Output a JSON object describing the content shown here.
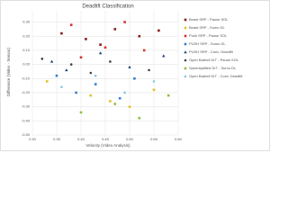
{
  "chart_data": {
    "type": "scatter",
    "title": "Deadlift Classification",
    "x_label": "Velocity (Video Analysis)",
    "y_label": "Difference (Video - Sensor)",
    "xlim": [
      0.3,
      0.6
    ],
    "ylim": [
      -0.5,
      0.38
    ],
    "xticks": [
      {
        "value": 0.3,
        "label": "0.30"
      },
      {
        "value": 0.35,
        "label": "0.35"
      },
      {
        "value": 0.4,
        "label": "0.40"
      },
      {
        "value": 0.45,
        "label": "0.45"
      },
      {
        "value": 0.5,
        "label": "0.50"
      },
      {
        "value": 0.55,
        "label": "0.55"
      },
      {
        "value": 0.6,
        "label": "0.60"
      }
    ],
    "yticks": [
      {
        "value": -0.5,
        "label": "-0.50"
      },
      {
        "value": -0.4,
        "label": "-0.40"
      },
      {
        "value": -0.3,
        "label": "-0.30"
      },
      {
        "value": -0.2,
        "label": "-0.20"
      },
      {
        "value": -0.1,
        "label": "-0.10"
      },
      {
        "value": 0,
        "label": "0.00"
      },
      {
        "value": 0.1,
        "label": "0.10"
      },
      {
        "value": 0.2,
        "label": "0.20"
      },
      {
        "value": 0.3,
        "label": "0.30"
      }
    ],
    "grid": true,
    "series": [
      {
        "name": "Beast SRP - Pause SOL",
        "color": "#8b1a1a",
        "marker": "square",
        "x": [
          0.36,
          0.41,
          0.47,
          0.52,
          0.56,
          0.44
        ],
        "values": [
          0.22,
          0.18,
          0.25,
          0.2,
          0.24,
          0.14
        ]
      },
      {
        "name": "Beast SRP - Sumo DL",
        "color": "#e6c229",
        "marker": "square",
        "x": [
          0.33,
          0.42,
          0.5,
          0.55,
          0.46
        ],
        "values": [
          -0.12,
          -0.22,
          -0.3,
          -0.18,
          -0.26
        ]
      },
      {
        "name": "Push SRP - Pause SOL",
        "color": "#d9332b",
        "marker": "square",
        "x": [
          0.38,
          0.45,
          0.49,
          0.53,
          0.4
        ],
        "values": [
          0.28,
          0.12,
          0.3,
          0.1,
          0.05
        ]
      },
      {
        "name": "PUSH SRP - Sumo DL",
        "color": "#3a7dc9",
        "marker": "square",
        "x": [
          0.35,
          0.39,
          0.43,
          0.48,
          0.51
        ],
        "values": [
          -0.08,
          -0.2,
          -0.14,
          -0.24,
          -0.1
        ]
      },
      {
        "name": "PUSH SRP - Conv. Deadlift",
        "color": "#1f3d7a",
        "marker": "triangle",
        "x": [
          0.34,
          0.37,
          0.44,
          0.5,
          0.57
        ],
        "values": [
          0.02,
          -0.04,
          0.08,
          -0.02,
          0.06
        ]
      },
      {
        "name": "Open Barbell DrT - Pause SOL",
        "color": "#404040",
        "marker": "circle",
        "x": [
          0.32,
          0.38,
          0.42,
          0.46,
          0.54
        ],
        "values": [
          0.04,
          0.0,
          -0.06,
          0.02,
          -0.04
        ]
      },
      {
        "name": "Speedsplitted DrT - Sumo DL",
        "color": "#8fbf3f",
        "marker": "square",
        "x": [
          0.4,
          0.47,
          0.52,
          0.58
        ],
        "values": [
          -0.34,
          -0.28,
          -0.38,
          -0.22
        ]
      },
      {
        "name": "Open Barbell DrT - Conv. Deadlift",
        "color": "#7ec8e3",
        "marker": "circle",
        "x": [
          0.36,
          0.43,
          0.49,
          0.55
        ],
        "values": [
          -0.16,
          -0.08,
          -0.2,
          -0.12
        ]
      }
    ]
  }
}
